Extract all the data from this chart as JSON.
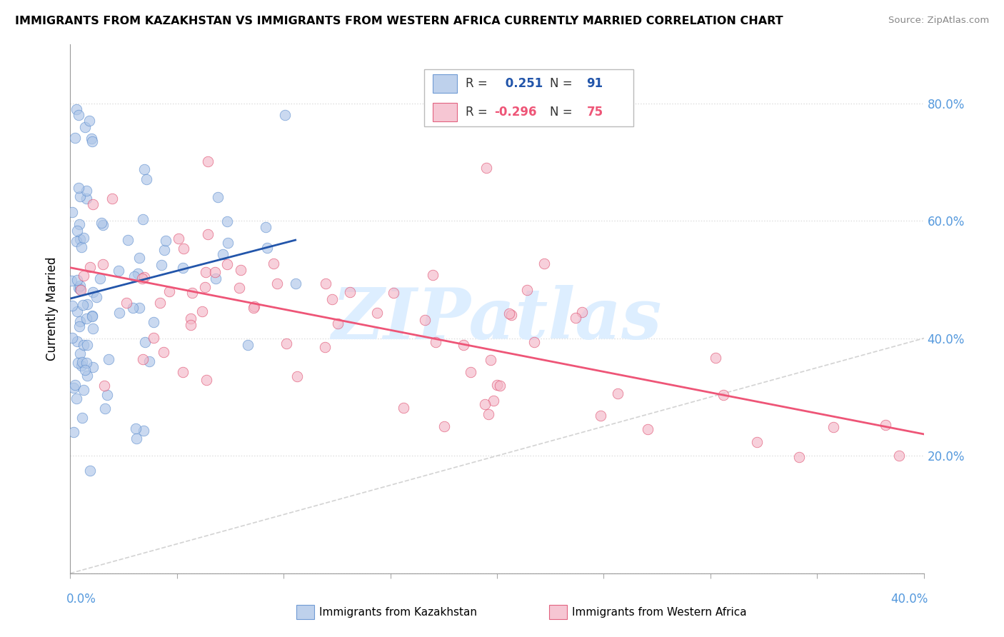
{
  "title": "IMMIGRANTS FROM KAZAKHSTAN VS IMMIGRANTS FROM WESTERN AFRICA CURRENTLY MARRIED CORRELATION CHART",
  "source": "Source: ZipAtlas.com",
  "ylabel": "Currently Married",
  "xlim": [
    0.0,
    0.4
  ],
  "ylim": [
    0.0,
    0.9
  ],
  "legend": {
    "blue_R": "0.251",
    "blue_N": "91",
    "pink_R": "-0.296",
    "pink_N": "75"
  },
  "diag_line_color": "#c8c8c8",
  "blue_color": "#aec6e8",
  "pink_color": "#f4b8c8",
  "blue_line_color": "#2255aa",
  "pink_line_color": "#ee5577",
  "blue_edge_color": "#5588cc",
  "pink_edge_color": "#dd4466",
  "watermark_text": "ZIPatlas",
  "watermark_color": "#ddeeff",
  "right_tick_color": "#5599dd",
  "xlabel_color": "#5599dd"
}
